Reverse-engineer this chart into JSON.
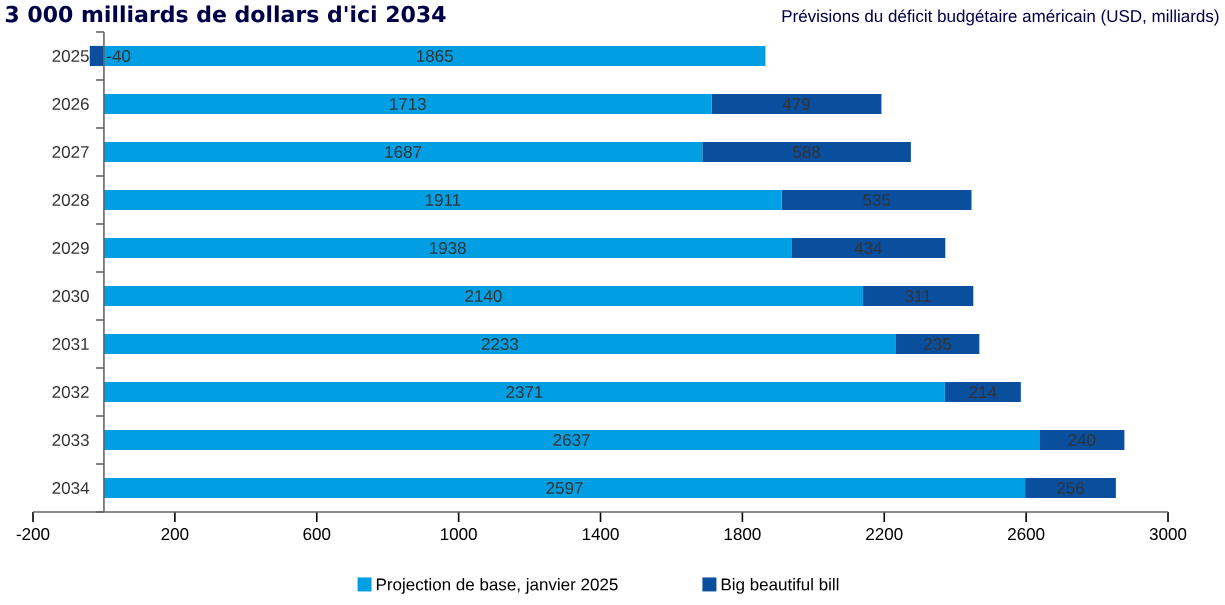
{
  "chart_data": {
    "type": "bar",
    "orientation": "horizontal",
    "stacked": true,
    "title": "3 000 milliards de dollars d'ici 2034",
    "subtitle": "Prévisions du déficit budgétaire américain (USD, milliards)",
    "categories": [
      "2025",
      "2026",
      "2027",
      "2028",
      "2029",
      "2030",
      "2031",
      "2032",
      "2033",
      "2034"
    ],
    "series": [
      {
        "name": "Projection de base, janvier 2025",
        "color": "#009fe3",
        "values": [
          1865,
          1713,
          1687,
          1911,
          1938,
          2140,
          2233,
          2371,
          2637,
          2597
        ]
      },
      {
        "name": "Big beautiful bill",
        "color": "#0a4f9e",
        "values": [
          -40,
          479,
          588,
          535,
          434,
          311,
          235,
          214,
          240,
          256
        ]
      }
    ],
    "xlim": [
      -200,
      3000
    ],
    "xticks": [
      -200,
      200,
      600,
      1000,
      1400,
      1800,
      2200,
      2600,
      3000
    ],
    "data_labels": true,
    "legend": "bottom",
    "grid": false
  }
}
